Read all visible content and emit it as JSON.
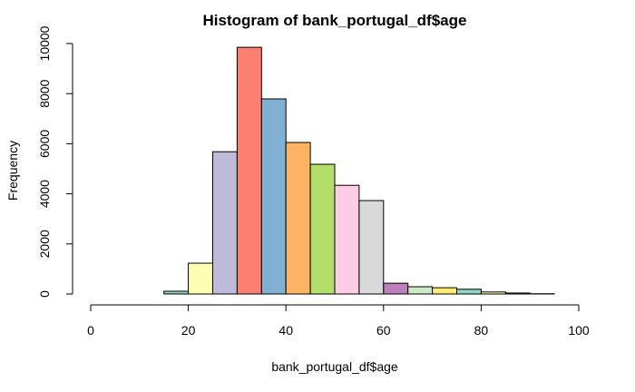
{
  "chart_data": {
    "type": "histogram",
    "title": "Histogram of bank_portugal_df$age",
    "xlabel": "bank_portugal_df$age",
    "ylabel": "Frequency",
    "xlim": [
      0,
      100
    ],
    "ylim": [
      0,
      10000
    ],
    "x_ticks": [
      0,
      20,
      40,
      60,
      80,
      100
    ],
    "y_ticks": [
      0,
      2000,
      4000,
      6000,
      8000,
      10000
    ],
    "bin_width": 5,
    "bins": [
      {
        "start": 15,
        "end": 20,
        "count": 110
      },
      {
        "start": 20,
        "end": 25,
        "count": 1230
      },
      {
        "start": 25,
        "end": 30,
        "count": 5680
      },
      {
        "start": 30,
        "end": 35,
        "count": 9850
      },
      {
        "start": 35,
        "end": 40,
        "count": 7790
      },
      {
        "start": 40,
        "end": 45,
        "count": 6050
      },
      {
        "start": 45,
        "end": 50,
        "count": 5180
      },
      {
        "start": 50,
        "end": 55,
        "count": 4340
      },
      {
        "start": 55,
        "end": 60,
        "count": 3730
      },
      {
        "start": 60,
        "end": 65,
        "count": 430
      },
      {
        "start": 65,
        "end": 70,
        "count": 290
      },
      {
        "start": 70,
        "end": 75,
        "count": 250
      },
      {
        "start": 75,
        "end": 80,
        "count": 190
      },
      {
        "start": 80,
        "end": 85,
        "count": 80
      },
      {
        "start": 85,
        "end": 90,
        "count": 40
      },
      {
        "start": 90,
        "end": 95,
        "count": 10
      }
    ],
    "bar_colors": [
      "#8DD3C7",
      "#FFFFB3",
      "#BEBADA",
      "#FB8072",
      "#80B1D3",
      "#FDB462",
      "#B3DE69",
      "#FCCDE5",
      "#D9D9D9",
      "#BC80BD",
      "#CCEBC5",
      "#FFED6F",
      "#8DD3C7",
      "#FFFFB3",
      "#BEBADA",
      "#FB8072"
    ],
    "grid": false,
    "legend": "none"
  }
}
